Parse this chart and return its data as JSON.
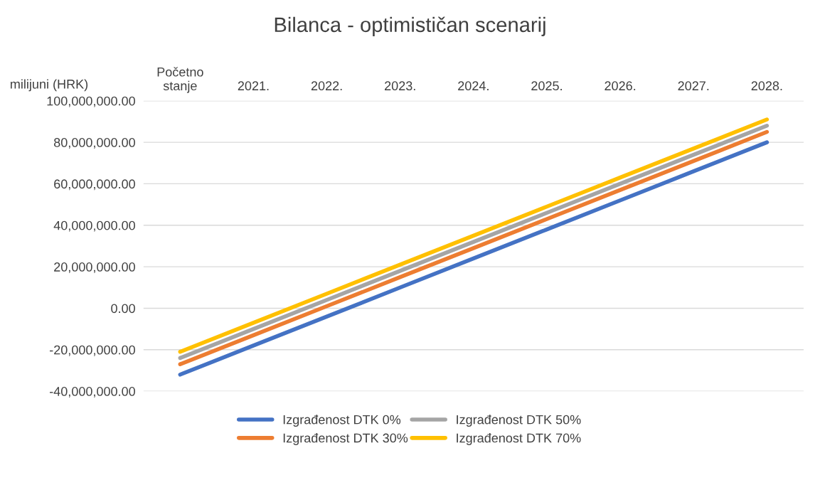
{
  "chart_data": {
    "type": "line",
    "title": "Bilanca - optimističan scenarij",
    "ylabel": "milijuni (HRK)",
    "categories": [
      "Početno\nstanje",
      "2021.",
      "2022.",
      "2023.",
      "2024.",
      "2025.",
      "2026.",
      "2027.",
      "2028."
    ],
    "series": [
      {
        "name": "Izgrađenost DTK 0%",
        "color": "#4472c4",
        "values": [
          -32000000,
          -18000000,
          -4000000,
          10000000,
          24000000,
          38000000,
          52000000,
          66000000,
          80000000
        ]
      },
      {
        "name": "Izgrađenost DTK 30%",
        "color": "#ed7d31",
        "values": [
          -27000000,
          -13000000,
          1000000,
          15000000,
          29000000,
          43000000,
          57000000,
          71000000,
          85000000
        ]
      },
      {
        "name": "Izgrađenost DTK 50%",
        "color": "#a5a5a5",
        "values": [
          -24000000,
          -10000000,
          4000000,
          18000000,
          32000000,
          46000000,
          60000000,
          74000000,
          88000000
        ]
      },
      {
        "name": "Izgrađenost DTK 70%",
        "color": "#ffc000",
        "values": [
          -21000000,
          -7000000,
          7000000,
          21000000,
          35000000,
          49000000,
          63000000,
          77000000,
          91000000
        ]
      }
    ],
    "ylim": [
      -40000000,
      100000000
    ],
    "yticks": [
      {
        "value": -40000000,
        "label": "-40,000,000.00"
      },
      {
        "value": -20000000,
        "label": "-20,000,000.00"
      },
      {
        "value": 0,
        "label": "0.00"
      },
      {
        "value": 20000000,
        "label": "20,000,000.00"
      },
      {
        "value": 40000000,
        "label": "40,000,000.00"
      },
      {
        "value": 60000000,
        "label": "60,000,000.00"
      },
      {
        "value": 80000000,
        "label": "80,000,000.00"
      },
      {
        "value": 100000000,
        "label": "100,000,000.00"
      }
    ],
    "grid": "y",
    "legend": "bottom",
    "marker": "none",
    "line_style": "solid"
  }
}
